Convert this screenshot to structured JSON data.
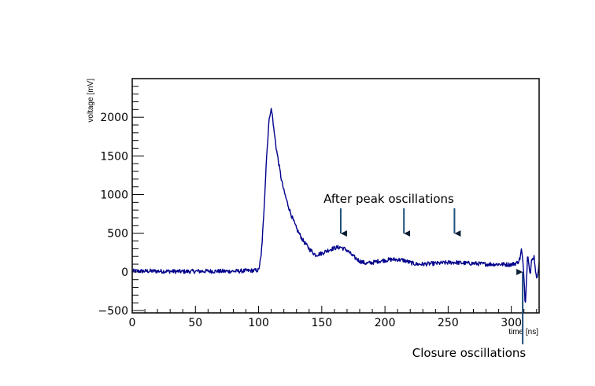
{
  "chart_data": {
    "type": "line",
    "xlabel": "time [ns]",
    "ylabel": "voltage [mV]",
    "xlim": [
      0,
      322
    ],
    "ylim": [
      -530,
      2500
    ],
    "x_ticks": [
      0,
      50,
      100,
      150,
      200,
      250,
      300
    ],
    "y_ticks": [
      -500,
      0,
      500,
      1000,
      1500,
      2000
    ],
    "grid": false,
    "legend": "none",
    "series_color": "#00008b",
    "series": [
      {
        "x": [
          0,
          20,
          40,
          60,
          80,
          100,
          102,
          104,
          106,
          108,
          109,
          110,
          111,
          112,
          114,
          116,
          118,
          120,
          123,
          126,
          130,
          135,
          140,
          145,
          150,
          155,
          160,
          165,
          170,
          175,
          180,
          185,
          190,
          195,
          200,
          205,
          210,
          215,
          220,
          225,
          230,
          235,
          240,
          245,
          250,
          255,
          260,
          270,
          280,
          290,
          300,
          305,
          307,
          308,
          309,
          310,
          311,
          312,
          313,
          314,
          315,
          316,
          318,
          320,
          322
        ],
        "y": [
          10,
          10,
          5,
          10,
          8,
          20,
          200,
          700,
          1400,
          1900,
          2050,
          2100,
          2020,
          1850,
          1600,
          1400,
          1200,
          1050,
          880,
          730,
          560,
          410,
          300,
          220,
          240,
          280,
          310,
          320,
          280,
          200,
          140,
          110,
          120,
          140,
          150,
          160,
          160,
          150,
          120,
          100,
          100,
          105,
          110,
          115,
          120,
          125,
          115,
          110,
          100,
          100,
          95,
          120,
          180,
          290,
          150,
          -50,
          -430,
          -100,
          250,
          100,
          -50,
          140,
          200,
          -100,
          100
        ]
      }
    ],
    "annotations": [
      {
        "text": "After peak oscillations",
        "arrows_x": [
          165,
          215,
          255
        ]
      },
      {
        "text": "Closure oscillations",
        "arrow_x": 309
      }
    ]
  }
}
